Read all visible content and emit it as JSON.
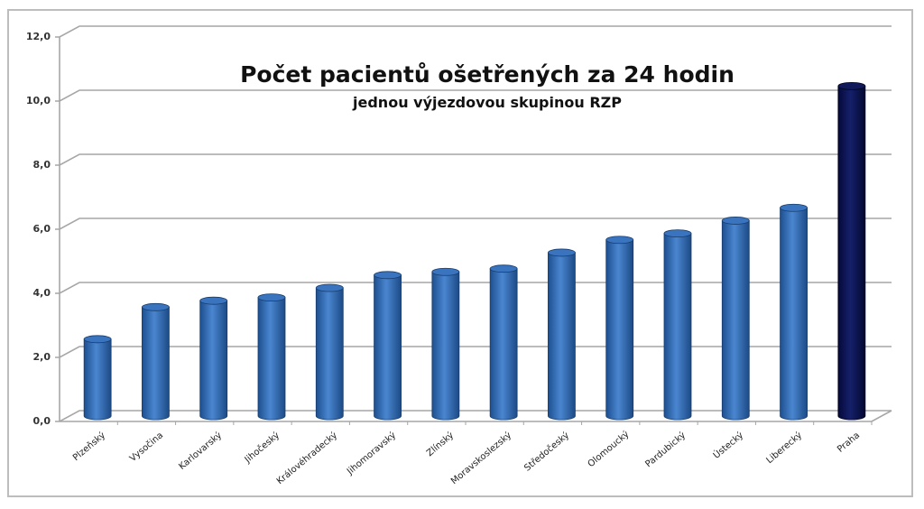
{
  "chart_data": {
    "type": "bar",
    "title": "Počet pacientů ošetřených za 24 hodin",
    "subtitle": "jednou výjezdovou skupinou RZP",
    "xlabel": "",
    "ylabel": "",
    "ylim": [
      0,
      12
    ],
    "yticks": [
      "0,0",
      "2,0",
      "4,0",
      "6,0",
      "8,0",
      "10,0",
      "12,0"
    ],
    "grid": true,
    "legend": null,
    "style": "3d-cylinder",
    "categories": [
      "Plzeňský",
      "Vysočina",
      "Karlovarský",
      "Jihočeský",
      "Královéhradecký",
      "Jihomoravský",
      "Zlínský",
      "Moravskoslezský",
      "Středočeský",
      "Olomoucký",
      "Pardubický",
      "Ústecký",
      "Liberecký",
      "Praha"
    ],
    "values": [
      2.4,
      3.4,
      3.6,
      3.7,
      4.0,
      4.4,
      4.5,
      4.6,
      5.1,
      5.5,
      5.7,
      6.1,
      6.5,
      10.3
    ],
    "colors": {
      "default": "#2e6bb8",
      "highlight": "#0a1450",
      "gridline": "#a6a6a6"
    },
    "highlight_index": 13
  }
}
